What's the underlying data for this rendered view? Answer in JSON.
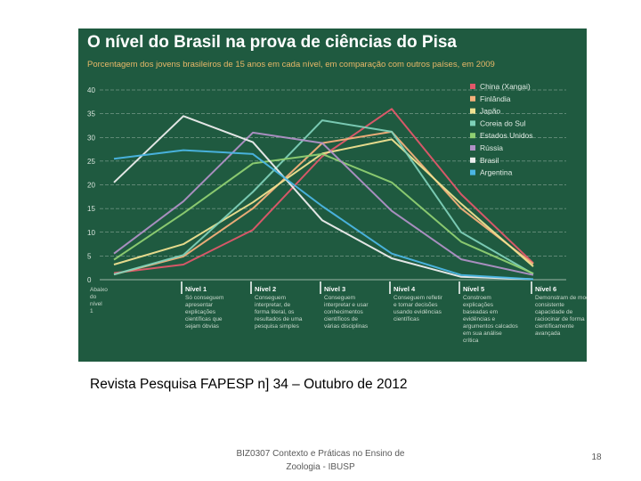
{
  "chart_data": {
    "type": "line",
    "title": "O nível do Brasil na prova de ciências do Pisa",
    "subtitle": "Porcentagem dos jovens brasileiros de 15 anos em cada nível, em comparação com outros países, em 2009",
    "ylim": [
      0,
      40
    ],
    "yticks": [
      0,
      5,
      10,
      15,
      20,
      25,
      30,
      35,
      40
    ],
    "categories": [
      {
        "label": "Abaixo do nível 1",
        "desc": ""
      },
      {
        "label": "Nível 1",
        "desc": "Só conseguem apresentar explicações científicas que sejam óbvias"
      },
      {
        "label": "Nível 2",
        "desc": "Conseguem interpretar, de forma literal, os resultados de uma pesquisa simples"
      },
      {
        "label": "Nível 3",
        "desc": "Conseguem interpretar e usar conhecimentos científicos de várias disciplinas"
      },
      {
        "label": "Nível 4",
        "desc": "Conseguem refletir e tomar decisões usando evidências científicas"
      },
      {
        "label": "Nível 5",
        "desc": "Constroem explicações baseadas em evidências e argumentos calcados em sua análise crítica"
      },
      {
        "label": "Nível 6",
        "desc": "Demonstram de modo consistente capacidade de raciocinar de forma científicamente avançada"
      }
    ],
    "series": [
      {
        "name": "China (Xangai)",
        "color": "#e2586a",
        "values": [
          1.4,
          3.2,
          10.5,
          26.0,
          36.0,
          18.0,
          3.5
        ]
      },
      {
        "name": "Finlândia",
        "color": "#f4b07a",
        "values": [
          1.1,
          4.9,
          15.0,
          28.8,
          31.2,
          15.0,
          3.3
        ]
      },
      {
        "name": "Japão",
        "color": "#f0e290",
        "values": [
          3.2,
          7.5,
          16.3,
          26.6,
          29.6,
          16.0,
          2.8
        ]
      },
      {
        "name": "Coreia do Sul",
        "color": "#7ed0b8",
        "values": [
          1.1,
          5.2,
          18.5,
          33.6,
          31.2,
          10.0,
          1.2
        ]
      },
      {
        "name": "Estados Unidos",
        "color": "#8fcf72",
        "values": [
          4.2,
          14.0,
          24.5,
          26.5,
          20.5,
          8.0,
          1.3
        ]
      },
      {
        "name": "Rússia",
        "color": "#b091c6",
        "values": [
          5.5,
          16.5,
          31.0,
          28.8,
          14.5,
          4.3,
          1.0
        ]
      },
      {
        "name": "Brasil",
        "color": "#eeeeee",
        "values": [
          20.5,
          34.5,
          29.0,
          12.5,
          4.5,
          0.6,
          0.1
        ]
      },
      {
        "name": "Argentina",
        "color": "#4bb6e4",
        "values": [
          25.5,
          27.3,
          26.5,
          15.5,
          5.5,
          1.0,
          0.1
        ]
      }
    ]
  },
  "caption": "Revista Pesquisa FAPESP n] 34 – Outubro de 2012",
  "footer": {
    "course_line1": "BIZ0307 Contexto e Práticas no Ensino de",
    "course_line2": "Zoologia - IBUSP",
    "page_number": "18"
  }
}
